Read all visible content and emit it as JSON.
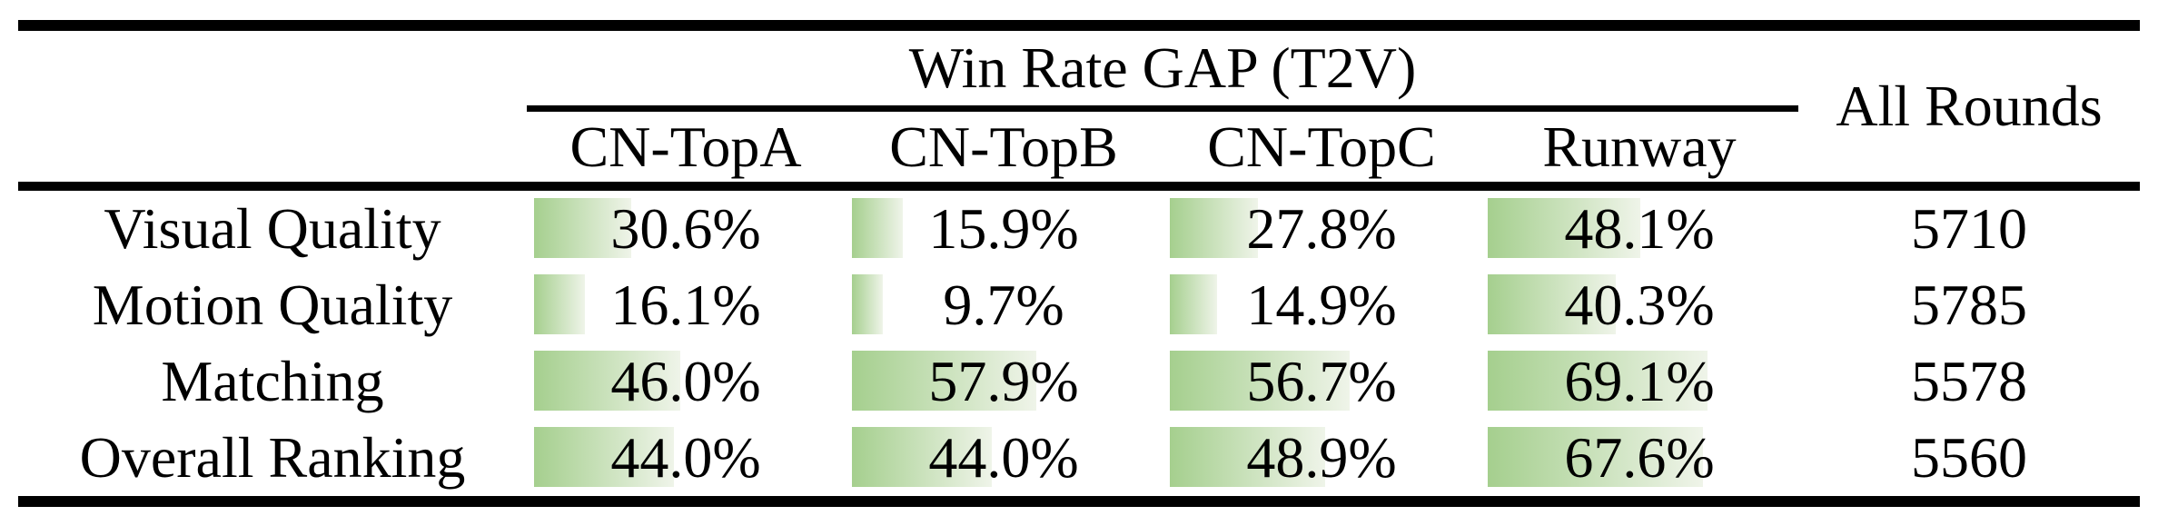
{
  "table": {
    "title": "Win Rate GAP (T2V)",
    "all_rounds_header": "All Rounds",
    "columns": [
      "CN-TopA",
      "CN-TopB",
      "CN-TopC",
      "Runway"
    ],
    "rows": [
      {
        "label": "Visual Quality",
        "cells": [
          {
            "display": "30.6%",
            "pct": 30.6
          },
          {
            "display": "15.9%",
            "pct": 15.9
          },
          {
            "display": "27.8%",
            "pct": 27.8
          },
          {
            "display": "48.1%",
            "pct": 48.1
          }
        ],
        "all_rounds": "5710"
      },
      {
        "label": "Motion Quality",
        "cells": [
          {
            "display": "16.1%",
            "pct": 16.1
          },
          {
            "display": "9.7%",
            "pct": 9.7
          },
          {
            "display": "14.9%",
            "pct": 14.9
          },
          {
            "display": "40.3%",
            "pct": 40.3
          }
        ],
        "all_rounds": "5785"
      },
      {
        "label": "Matching",
        "cells": [
          {
            "display": "46.0%",
            "pct": 46.0
          },
          {
            "display": "57.9%",
            "pct": 57.9
          },
          {
            "display": "56.7%",
            "pct": 56.7
          },
          {
            "display": "69.1%",
            "pct": 69.1
          }
        ],
        "all_rounds": "5578"
      },
      {
        "label": "Overall Ranking",
        "cells": [
          {
            "display": "44.0%",
            "pct": 44.0
          },
          {
            "display": "44.0%",
            "pct": 44.0
          },
          {
            "display": "48.9%",
            "pct": 48.9
          },
          {
            "display": "67.6%",
            "pct": 67.6
          }
        ],
        "all_rounds": "5560"
      }
    ]
  },
  "chart_data": {
    "type": "table",
    "title": "Win Rate GAP (T2V)",
    "categories": [
      "Visual Quality",
      "Motion Quality",
      "Matching",
      "Overall Ranking"
    ],
    "series": [
      {
        "name": "CN-TopA",
        "values": [
          30.6,
          16.1,
          46.0,
          44.0
        ]
      },
      {
        "name": "CN-TopB",
        "values": [
          15.9,
          9.7,
          57.9,
          44.0
        ]
      },
      {
        "name": "CN-TopC",
        "values": [
          27.8,
          14.9,
          56.7,
          48.9
        ]
      },
      {
        "name": "Runway",
        "values": [
          48.1,
          40.3,
          69.1,
          67.6
        ]
      },
      {
        "name": "All Rounds",
        "values": [
          5710,
          5785,
          5578,
          5560
        ]
      }
    ],
    "value_unit": "%",
    "bar_scale": "cell width = 100%"
  },
  "colors": {
    "bar_gradient_start": "#a5cf8e",
    "bar_gradient_end": "#eff4e9",
    "rule": "#000000",
    "text": "#000000",
    "background": "#ffffff"
  }
}
